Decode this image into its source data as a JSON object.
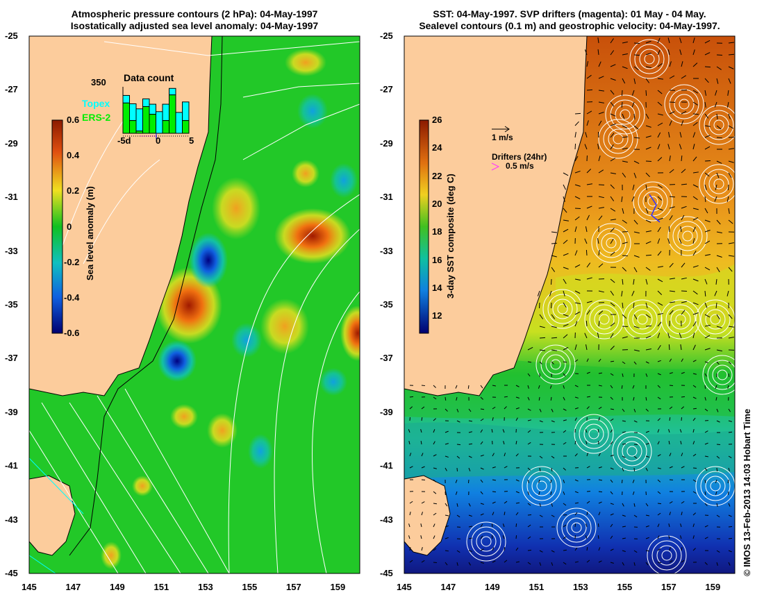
{
  "left_panel": {
    "title_line1": "Atmospheric pressure contours (2 hPa): 04-May-1997",
    "title_line2": "Isostatically adjusted sea level anomaly: 04-May-1997",
    "colorbar": {
      "label": "Sea level anomaly (m)",
      "ticks": [
        "0.6",
        "0.4",
        "0.2",
        "0",
        "-0.2",
        "-0.4",
        "-0.6"
      ],
      "range": [
        -0.6,
        0.6
      ]
    },
    "inset": {
      "title": "Data count",
      "ymax_label": "350",
      "legend_topex": "Topex",
      "legend_ers2": "ERS-2",
      "x_ticks": [
        "-5d",
        "0",
        "5"
      ]
    }
  },
  "right_panel": {
    "title_line1": "SST: 04-May-1997. SVP drifters (magenta): 01 May - 04 May.",
    "title_line2": "Sealevel contours (0.1 m) and geostrophic velocity: 04-May-1997.",
    "colorbar": {
      "label": "3-day SST composite (deg C)",
      "ticks": [
        "26",
        "24",
        "22",
        "20",
        "18",
        "16",
        "14",
        "12"
      ],
      "range": [
        11,
        26
      ]
    },
    "velocity_scale": "1 m/s",
    "drifters_label": "Drifters (24hr)",
    "drifters_scale": "0.5 m/s"
  },
  "axes": {
    "lat_labels": [
      "-25",
      "-27",
      "-29",
      "-31",
      "-33",
      "-35",
      "-37",
      "-39",
      "-41",
      "-43",
      "-45"
    ],
    "lon_labels": [
      "145",
      "147",
      "149",
      "151",
      "153",
      "155",
      "157",
      "159"
    ]
  },
  "credit": "© IMOS 13-Feb-2013 14:03 Hobart Time",
  "colors": {
    "land": "#fccc9c",
    "topex": "#00ffff",
    "ers2": "#00ee00",
    "drifter": "#ff33ff"
  },
  "chart_data": {
    "type": "bar",
    "title": "Data count",
    "categories": [
      "-5",
      "-4",
      "-3",
      "-2",
      "-1",
      "0",
      "1",
      "2",
      "3",
      "4"
    ],
    "series": [
      {
        "name": "ERS-2",
        "values": [
          228,
          96,
          17,
          201,
          143,
          0,
          96,
          289,
          0,
          96
        ]
      },
      {
        "name": "Topex",
        "values": [
          57,
          126,
          167,
          58,
          76,
          163,
          123,
          49,
          157,
          140
        ]
      }
    ],
    "ylim": [
      0,
      350
    ],
    "xlabel": "days",
    "ylabel": ""
  }
}
